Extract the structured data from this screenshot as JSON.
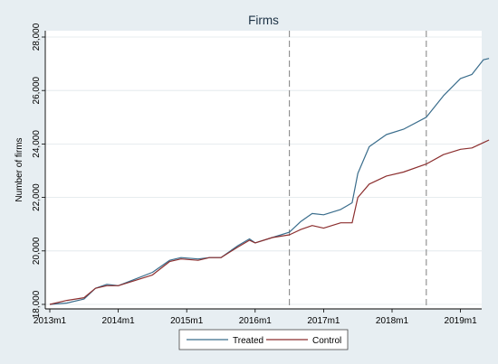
{
  "chart_data": {
    "type": "line",
    "title": "Firms",
    "xlabel": "",
    "ylabel": "Number of firms",
    "xticks": [
      "2013m1",
      "2014m1",
      "2015m1",
      "2016m1",
      "2017m1",
      "2018m1",
      "2019m1"
    ],
    "yticks": [
      "18,000",
      "20,000",
      "22,000",
      "24,000",
      "26,000",
      "28,000"
    ],
    "ylim": [
      18000,
      28000
    ],
    "x_period": "monthly, 2013m1 to 2019m6",
    "vlines": [
      "2016m7",
      "2018m7"
    ],
    "grid": "horizontal",
    "legend_position": "bottom",
    "series": [
      {
        "name": "Treated",
        "color": "#3a6d8c",
        "points": [
          [
            "2013m1",
            18000
          ],
          [
            "2013m4",
            18050
          ],
          [
            "2013m7",
            18200
          ],
          [
            "2013m9",
            18600
          ],
          [
            "2013m11",
            18750
          ],
          [
            "2014m1",
            18700
          ],
          [
            "2014m4",
            18950
          ],
          [
            "2014m7",
            19200
          ],
          [
            "2014m10",
            19650
          ],
          [
            "2014m12",
            19750
          ],
          [
            "2015m3",
            19700
          ],
          [
            "2015m5",
            19750
          ],
          [
            "2015m7",
            19750
          ],
          [
            "2015m10",
            20200
          ],
          [
            "2015m12",
            20450
          ],
          [
            "2016m1",
            20300
          ],
          [
            "2016m4",
            20500
          ],
          [
            "2016m7",
            20700
          ],
          [
            "2016m9",
            21100
          ],
          [
            "2016m11",
            21400
          ],
          [
            "2017m1",
            21350
          ],
          [
            "2017m4",
            21550
          ],
          [
            "2017m6",
            21800
          ],
          [
            "2017m7",
            22900
          ],
          [
            "2017m9",
            23900
          ],
          [
            "2017m12",
            24350
          ],
          [
            "2018m3",
            24550
          ],
          [
            "2018m7",
            25000
          ],
          [
            "2018m10",
            25800
          ],
          [
            "2019m1",
            26450
          ],
          [
            "2019m3",
            26600
          ],
          [
            "2019m5",
            27150
          ],
          [
            "2019m6",
            27200
          ]
        ]
      },
      {
        "name": "Control",
        "color": "#8c2f2f",
        "points": [
          [
            "2013m1",
            18000
          ],
          [
            "2013m4",
            18150
          ],
          [
            "2013m7",
            18250
          ],
          [
            "2013m9",
            18600
          ],
          [
            "2013m11",
            18700
          ],
          [
            "2014m1",
            18700
          ],
          [
            "2014m4",
            18900
          ],
          [
            "2014m7",
            19100
          ],
          [
            "2014m10",
            19600
          ],
          [
            "2014m12",
            19700
          ],
          [
            "2015m3",
            19650
          ],
          [
            "2015m5",
            19750
          ],
          [
            "2015m7",
            19750
          ],
          [
            "2015m10",
            20150
          ],
          [
            "2015m12",
            20400
          ],
          [
            "2016m1",
            20300
          ],
          [
            "2016m4",
            20500
          ],
          [
            "2016m7",
            20600
          ],
          [
            "2016m9",
            20800
          ],
          [
            "2016m11",
            20950
          ],
          [
            "2017m1",
            20850
          ],
          [
            "2017m4",
            21050
          ],
          [
            "2017m6",
            21050
          ],
          [
            "2017m7",
            22000
          ],
          [
            "2017m9",
            22500
          ],
          [
            "2017m12",
            22800
          ],
          [
            "2018m3",
            22950
          ],
          [
            "2018m7",
            23250
          ],
          [
            "2018m10",
            23600
          ],
          [
            "2019m1",
            23800
          ],
          [
            "2019m3",
            23850
          ],
          [
            "2019m5",
            24050
          ],
          [
            "2019m6",
            24150
          ]
        ]
      }
    ]
  }
}
